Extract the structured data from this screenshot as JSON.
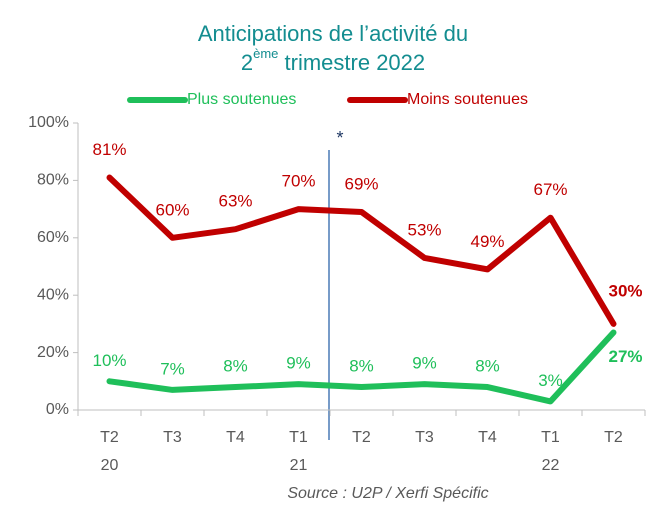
{
  "chart_data": {
    "type": "line",
    "title": [
      "Anticipations de l’activité du",
      "2",
      "ème",
      " trimestre 2022"
    ],
    "categories": [
      "T2",
      "T3",
      "T4",
      "T1",
      "T2",
      "T3",
      "T4",
      "T1",
      "T2"
    ],
    "year_labels": [
      "20",
      null,
      null,
      "21",
      null,
      null,
      null,
      "22",
      null
    ],
    "series": [
      {
        "name": "Plus soutenues",
        "color": "#1fbf5a",
        "values": [
          10,
          7,
          8,
          9,
          8,
          9,
          8,
          3,
          27
        ],
        "value_labels": [
          "10%",
          "7%",
          "8%",
          "9%",
          "8%",
          "9%",
          "8%",
          "3%",
          "27%"
        ]
      },
      {
        "name": "Moins soutenues",
        "color": "#c00000",
        "values": [
          81,
          60,
          63,
          70,
          69,
          53,
          49,
          67,
          30
        ],
        "value_labels": [
          "81%",
          "60%",
          "63%",
          "70%",
          "69%",
          "53%",
          "49%",
          "67%",
          "30%"
        ]
      }
    ],
    "ylim": [
      0,
      100
    ],
    "yticks": [
      {
        "value": 0,
        "label": "0%"
      },
      {
        "value": 20,
        "label": "20%"
      },
      {
        "value": 40,
        "label": "40%"
      },
      {
        "value": 60,
        "label": "60%"
      },
      {
        "value": 80,
        "label": "80%"
      },
      {
        "value": 100,
        "label": "100%"
      }
    ],
    "annotation": "*",
    "source": "Source : U2P / Xerfi Spécific",
    "grid": false
  }
}
